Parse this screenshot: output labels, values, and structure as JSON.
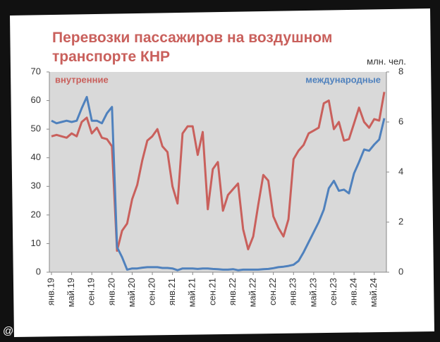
{
  "chart_data": {
    "type": "line",
    "title": "Перевозки пассажиров на воздушном транспорте КНР",
    "y2_label": "млн. чел.",
    "watermark": "@chinogram",
    "categories": [
      "янв.19",
      null,
      null,
      null,
      "май.19",
      null,
      null,
      null,
      "сен.19",
      null,
      null,
      null,
      "янв.20",
      null,
      null,
      null,
      "май.20",
      null,
      null,
      null,
      "сен.20",
      null,
      null,
      null,
      "янв.21",
      null,
      null,
      null,
      "май.21",
      null,
      null,
      null,
      "сен.21",
      null,
      null,
      null,
      "янв.22",
      null,
      null,
      null,
      "май.22",
      null,
      null,
      null,
      "сен.22",
      null,
      null,
      null,
      "янв.23",
      null,
      null,
      null,
      "май.23",
      null,
      null,
      null,
      "сен.23",
      null,
      null,
      null,
      "янв.24",
      null,
      null,
      null,
      "май.24",
      null,
      null
    ],
    "series": [
      {
        "name": "внутренние",
        "color": "#c9605c",
        "axis": "y",
        "values": [
          47.5,
          48,
          47.5,
          47,
          48.5,
          47.5,
          52.5,
          54,
          48.5,
          50.5,
          47,
          46.5,
          44,
          7.5,
          14.5,
          17,
          25.5,
          30.5,
          39,
          46,
          47.5,
          50,
          44,
          42,
          30,
          24,
          48.5,
          51,
          51,
          41,
          49,
          22,
          36,
          38.5,
          21.5,
          27,
          29,
          31,
          15,
          8,
          12.5,
          23.5,
          34,
          32,
          19.5,
          15.5,
          12.5,
          18.5,
          39.5,
          42.5,
          44.5,
          48.5,
          49.5,
          50.5,
          59,
          60,
          50,
          52.5,
          46,
          46.5,
          52,
          57.5,
          52.5,
          50.5,
          53.5,
          53,
          63
        ]
      },
      {
        "name": "международные",
        "color": "#4f81bd",
        "axis": "y2",
        "values": [
          6.05,
          5.95,
          6.0,
          6.05,
          6.0,
          6.05,
          6.55,
          7.0,
          6.05,
          6.05,
          5.95,
          6.35,
          6.6,
          1.0,
          0.6,
          0.1,
          0.15,
          0.15,
          0.18,
          0.2,
          0.2,
          0.2,
          0.17,
          0.17,
          0.15,
          0.08,
          0.15,
          0.15,
          0.15,
          0.13,
          0.15,
          0.15,
          0.13,
          0.12,
          0.1,
          0.1,
          0.12,
          0.08,
          0.1,
          0.1,
          0.1,
          0.1,
          0.12,
          0.13,
          0.16,
          0.2,
          0.22,
          0.25,
          0.3,
          0.45,
          0.8,
          1.2,
          1.6,
          2.0,
          2.5,
          3.35,
          3.65,
          3.25,
          3.3,
          3.15,
          3.95,
          4.4,
          4.9,
          4.85,
          5.1,
          5.3,
          6.15
        ]
      }
    ],
    "ylim": [
      0,
      70
    ],
    "yticks": [
      0,
      10,
      20,
      30,
      40,
      50,
      60,
      70
    ],
    "y2lim": [
      0,
      8
    ],
    "y2ticks": [
      0,
      2,
      4,
      6,
      8
    ],
    "grid": false
  }
}
